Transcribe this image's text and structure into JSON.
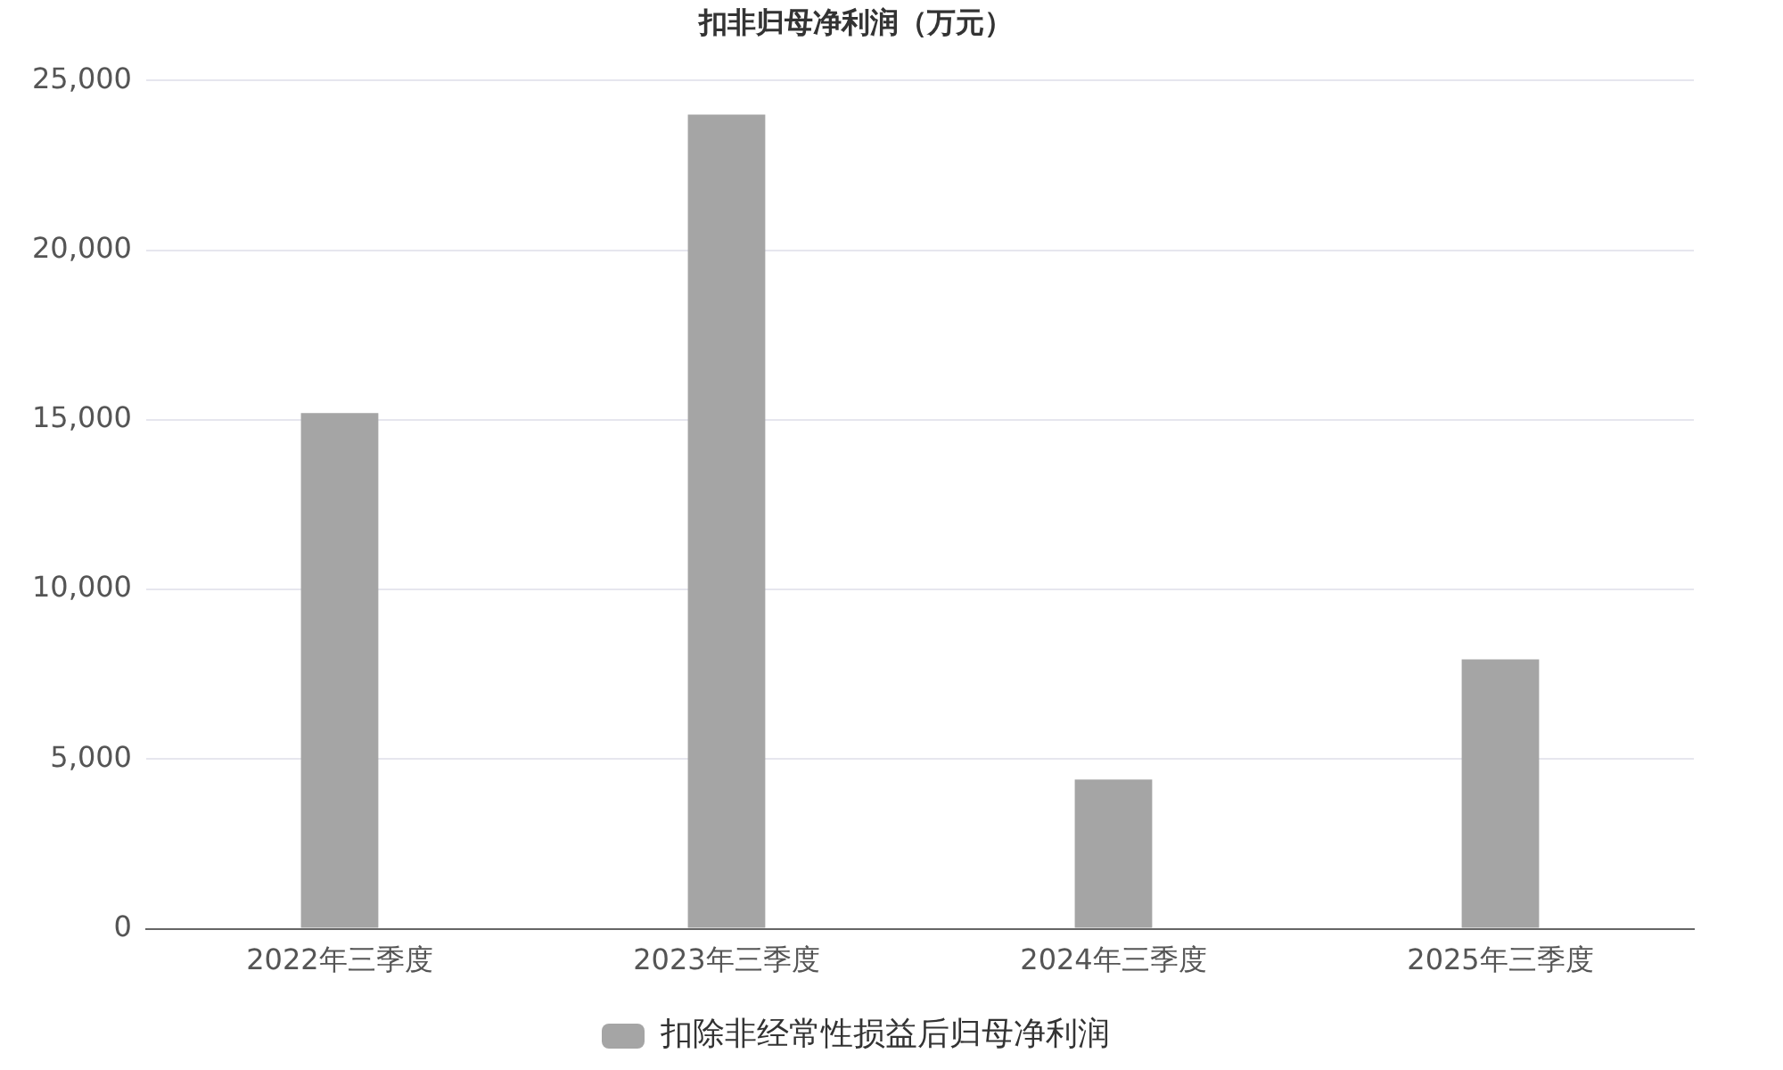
{
  "chart_data": {
    "type": "bar",
    "title": "扣非归母净利润（万元）",
    "categories": [
      "2022年三季度",
      "2023年三季度",
      "2024年三季度",
      "2025年三季度"
    ],
    "series": [
      {
        "name": "扣除非经常性损益后归母净利润",
        "color": "#a5a5a5",
        "values": [
          15200,
          24000,
          4400,
          7940
        ]
      }
    ],
    "ylim": [
      0,
      25000
    ],
    "yticks": [
      0,
      {
        "value": 5000,
        "label": "5,000"
      },
      {
        "value": 10000,
        "label": "10,000"
      },
      {
        "value": 15000,
        "label": "15,000"
      },
      {
        "value": 20000,
        "label": "20,000"
      },
      {
        "value": 25000,
        "label": "25,000"
      }
    ],
    "grid": "y",
    "legend": "bottom"
  }
}
